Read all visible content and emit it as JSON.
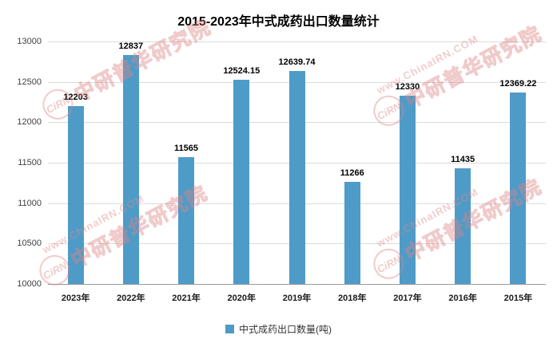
{
  "title": "2015-2023年中式成药出口数量统计",
  "legend": "中式成药出口数量(吨)",
  "colors": {
    "bar": "#4f9bc8",
    "grid": "#dcdcdc",
    "axis": "#9a9a9a"
  },
  "watermark": {
    "url": "www.ChinaIRN.COM",
    "logo": "CiRN",
    "brand": "中研普华研究院"
  },
  "chart_data": {
    "type": "bar",
    "title": "2015-2023年中式成药出口数量统计",
    "categories": [
      "2023年",
      "2022年",
      "2021年",
      "2020年",
      "2019年",
      "2018年",
      "2017年",
      "2016年",
      "2015年"
    ],
    "values": [
      12203,
      12837,
      11565,
      12524.15,
      12639.74,
      11266,
      12330,
      11435,
      12369.22
    ],
    "value_labels": [
      "12203",
      "12837",
      "11565",
      "12524.15",
      "12639.74",
      "11266",
      "12330",
      "11435",
      "12369.22"
    ],
    "xlabel": "",
    "ylabel": "",
    "ylim": [
      10000,
      13000
    ],
    "ytick_step": 500,
    "grid": true,
    "legend": [
      "中式成药出口数量(吨)"
    ],
    "legend_position": "bottom"
  }
}
